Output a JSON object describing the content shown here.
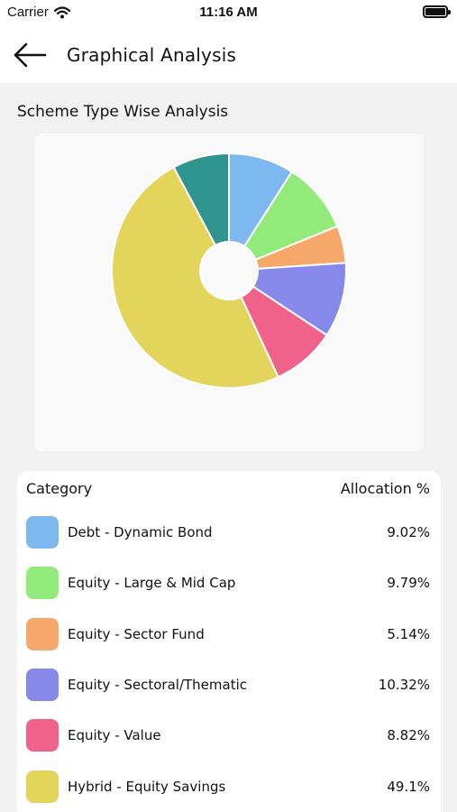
{
  "status_bar": {
    "carrier": "Carrier",
    "time": "11:16 AM"
  },
  "header": {
    "title": "Graphical Analysis"
  },
  "section": {
    "title": "Scheme Type Wise Analysis"
  },
  "table": {
    "col_category": "Category",
    "col_allocation": "Allocation %",
    "rows": [
      {
        "label": "Debt - Dynamic Bond",
        "value": "9.02%",
        "color": "#7db8ee"
      },
      {
        "label": "Equity - Large & Mid Cap",
        "value": "9.79%",
        "color": "#92ea7a"
      },
      {
        "label": "Equity - Sector Fund",
        "value": "5.14%",
        "color": "#f6a86a"
      },
      {
        "label": "Equity - Sectoral/Thematic",
        "value": "10.32%",
        "color": "#8789ea"
      },
      {
        "label": "Equity - Value",
        "value": "8.82%",
        "color": "#f1628a"
      },
      {
        "label": "Hybrid - Equity Savings",
        "value": "49.1%",
        "color": "#e3d45c"
      }
    ]
  },
  "chart_data": {
    "type": "pie",
    "title": "Scheme Type Wise Analysis",
    "donut": true,
    "slices": [
      {
        "label": "Debt - Dynamic Bond",
        "value": 9.02,
        "color": "#7db8ee"
      },
      {
        "label": "Equity - Large & Mid Cap",
        "value": 9.79,
        "color": "#92ea7a"
      },
      {
        "label": "Equity - Sector Fund",
        "value": 5.14,
        "color": "#f6a86a"
      },
      {
        "label": "Equity - Sectoral/Thematic",
        "value": 10.32,
        "color": "#8789ea"
      },
      {
        "label": "Equity - Value",
        "value": 8.82,
        "color": "#f1628a"
      },
      {
        "label": "Hybrid - Equity Savings",
        "value": 49.1,
        "color": "#e3d45c"
      },
      {
        "label": "",
        "value": 7.81,
        "color": "#2e948d"
      }
    ]
  }
}
